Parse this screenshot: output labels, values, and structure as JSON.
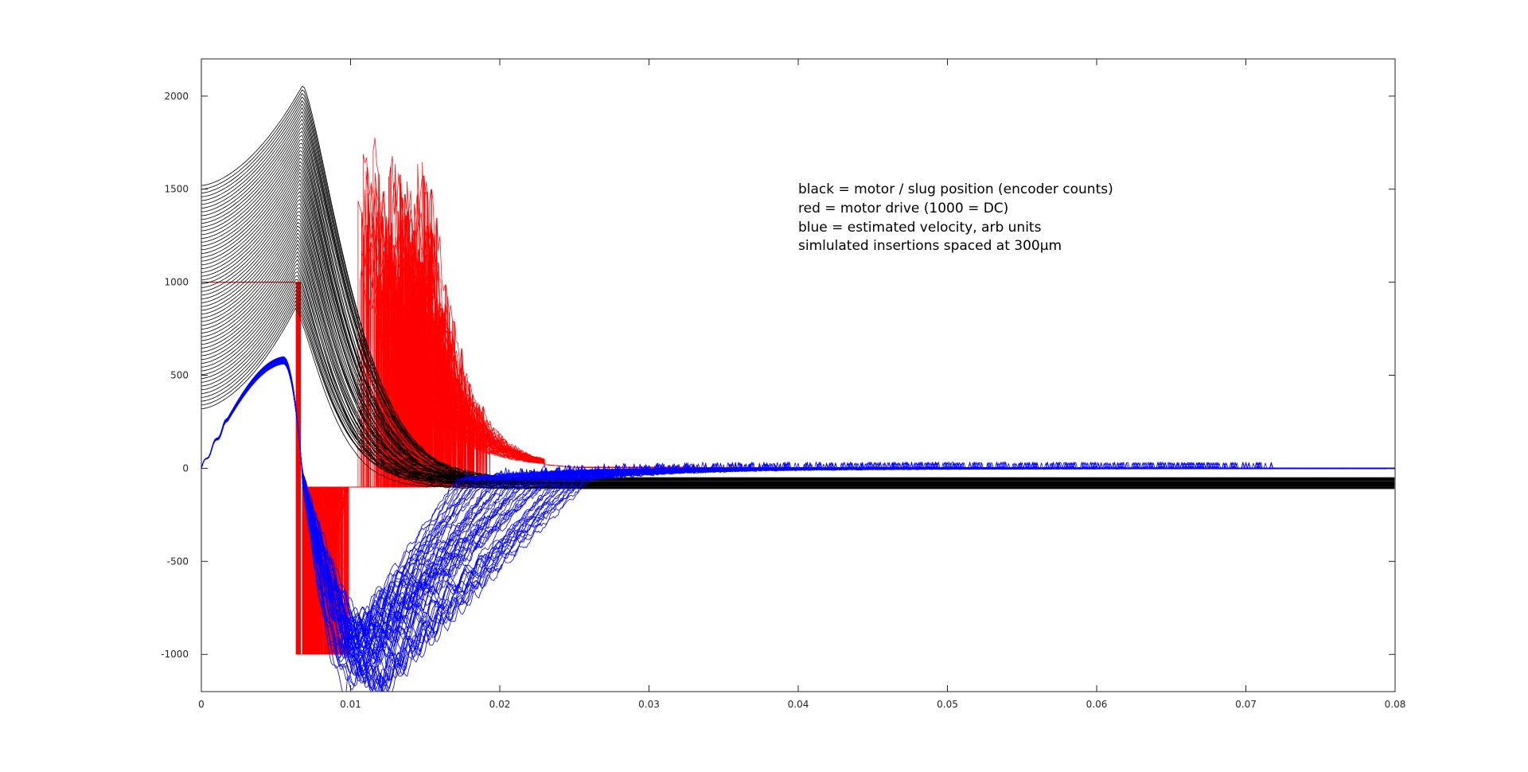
{
  "chart_data": {
    "type": "line",
    "title": "",
    "xlabel": "",
    "ylabel": "",
    "xlim": [
      0,
      0.08
    ],
    "ylim": [
      -1200,
      2200
    ],
    "x_ticks": [
      0,
      0.01,
      0.02,
      0.03,
      0.04,
      0.05,
      0.06,
      0.07,
      0.08
    ],
    "x_tick_labels": [
      "0",
      "0.01",
      "0.02",
      "0.03",
      "0.04",
      "0.05",
      "0.06",
      "0.07",
      "0.08"
    ],
    "y_ticks": [
      -1000,
      -500,
      0,
      500,
      1000,
      1500,
      2000
    ],
    "y_tick_labels": [
      "-1000",
      "-500",
      "0",
      "500",
      "1000",
      "1500",
      "2000"
    ],
    "grid": false,
    "annotation": [
      "black = motor / slug position (encoder counts)",
      "red = motor drive (1000 = DC)",
      "blue = estimated velocity, arb units",
      "simlulated insertions spaced at 300μm"
    ],
    "series_groups": [
      {
        "color": "#000000",
        "count": 60,
        "peak_time_range": [
          0.0063,
          0.0068
        ],
        "start_value_range": [
          320,
          1520
        ],
        "peak_value_range": [
          860,
          2060
        ],
        "settle_value_range": [
          -110,
          -50
        ],
        "settle_time_range": [
          0.015,
          0.03
        ]
      },
      {
        "color": "#ff0000",
        "count": 60,
        "levels": [
          1000,
          -1000,
          -100
        ],
        "switch_time": 0.0065,
        "reverse_end_range": [
          0.0072,
          0.0099
        ],
        "burst_start_range": [
          0.0105,
          0.0155
        ],
        "burst_peak_range": [
          1000,
          1870
        ],
        "burst_end": 0.023
      },
      {
        "color": "#0000ff",
        "count": 60,
        "peak_value_range": [
          560,
          600
        ],
        "peak_time": 0.0055,
        "trough_value_range": [
          -1200,
          -850
        ],
        "trough_time_range": [
          0.0092,
          0.0125
        ],
        "recover_time_range": [
          0.017,
          0.026
        ],
        "ripple_amplitude": 25
      }
    ]
  }
}
